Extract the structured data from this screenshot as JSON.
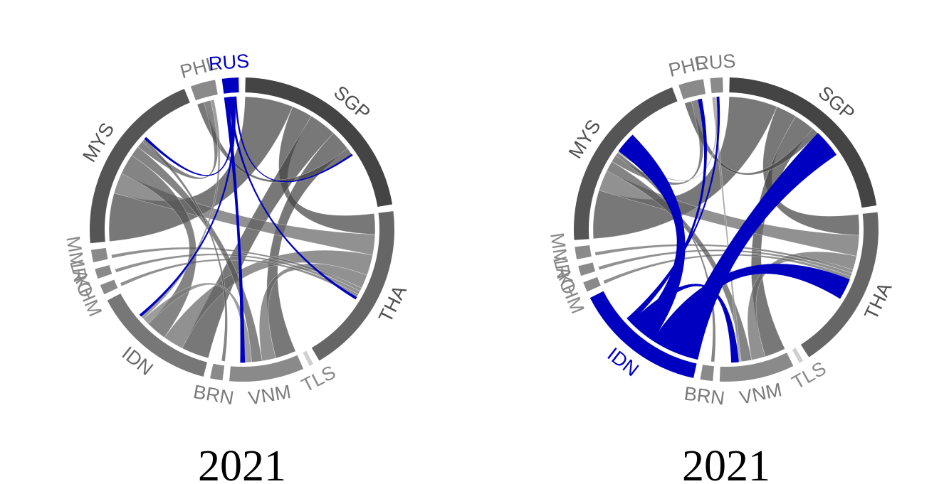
{
  "chart_data": [
    {
      "type": "chord",
      "title": "2021",
      "highlight": "RUS",
      "highlight_color": "#0000c0",
      "sectors": [
        {
          "label": "SGP",
          "value": 25,
          "color": "#444444",
          "label_color": "#505050"
        },
        {
          "label": "THA",
          "value": 21,
          "color": "#666666",
          "label_color": "#505050"
        },
        {
          "label": "TLS",
          "value": 0.5,
          "color": "#cfcfcf",
          "label_color": "#8a8a8a"
        },
        {
          "label": "VNM",
          "value": 9,
          "color": "#8a8a8a",
          "label_color": "#7a7a7a"
        },
        {
          "label": "BRN",
          "value": 1.5,
          "color": "#8a8a8a",
          "label_color": "#7a7a7a"
        },
        {
          "label": "IDN",
          "value": 15,
          "color": "#777777",
          "label_color": "#6a6a6a"
        },
        {
          "label": "KHM",
          "value": 1.2,
          "color": "#8a8a8a",
          "label_color": "#8a8a8a"
        },
        {
          "label": "LAO",
          "value": 1.2,
          "color": "#8a8a8a",
          "label_color": "#8a8a8a"
        },
        {
          "label": "MMR",
          "value": 1.5,
          "color": "#8a8a8a",
          "label_color": "#8a8a8a"
        },
        {
          "label": "MYS",
          "value": 23,
          "color": "#555555",
          "label_color": "#505050"
        },
        {
          "label": "PHL",
          "value": 3,
          "color": "#8a8a8a",
          "label_color": "#7a7a7a"
        },
        {
          "label": "RUS",
          "value": 2,
          "color": "#0000c0",
          "label_color": "#0000c0"
        }
      ],
      "flows": [
        {
          "from": "SGP",
          "to": "MYS",
          "value": 7
        },
        {
          "from": "SGP",
          "to": "THA",
          "value": 3
        },
        {
          "from": "SGP",
          "to": "IDN",
          "value": 4
        },
        {
          "from": "SGP",
          "to": "VNM",
          "value": 3
        },
        {
          "from": "SGP",
          "to": "PHL",
          "value": 1
        },
        {
          "from": "THA",
          "to": "MYS",
          "value": 3
        },
        {
          "from": "THA",
          "to": "IDN",
          "value": 3
        },
        {
          "from": "THA",
          "to": "VNM",
          "value": 2
        },
        {
          "from": "THA",
          "to": "MMR",
          "value": 0.5
        },
        {
          "from": "THA",
          "to": "LAO",
          "value": 0.5
        },
        {
          "from": "THA",
          "to": "KHM",
          "value": 0.5
        },
        {
          "from": "MYS",
          "to": "IDN",
          "value": 3
        },
        {
          "from": "MYS",
          "to": "VNM",
          "value": 1.5
        },
        {
          "from": "MYS",
          "to": "PHL",
          "value": 1
        },
        {
          "from": "MYS",
          "to": "BRN",
          "value": 0.5
        },
        {
          "from": "IDN",
          "to": "VNM",
          "value": 1
        },
        {
          "from": "IDN",
          "to": "PHL",
          "value": 0.5
        },
        {
          "from": "RUS",
          "to": "VNM",
          "value": 0.6
        },
        {
          "from": "RUS",
          "to": "THA",
          "value": 0.3
        },
        {
          "from": "RUS",
          "to": "MYS",
          "value": 0.3
        },
        {
          "from": "RUS",
          "to": "IDN",
          "value": 0.3
        },
        {
          "from": "RUS",
          "to": "SGP",
          "value": 0.2
        }
      ]
    },
    {
      "type": "chord",
      "title": "2021",
      "highlight": "IDN",
      "highlight_color": "#0000c0",
      "sectors": [
        {
          "label": "SGP",
          "value": 25,
          "color": "#444444",
          "label_color": "#505050"
        },
        {
          "label": "THA",
          "value": 20,
          "color": "#666666",
          "label_color": "#505050"
        },
        {
          "label": "TLS",
          "value": 0.5,
          "color": "#cfcfcf",
          "label_color": "#8a8a8a"
        },
        {
          "label": "VNM",
          "value": 9,
          "color": "#8a8a8a",
          "label_color": "#7a7a7a"
        },
        {
          "label": "BRN",
          "value": 1.5,
          "color": "#8a8a8a",
          "label_color": "#7a7a7a"
        },
        {
          "label": "IDN",
          "value": 16,
          "color": "#0000c0",
          "label_color": "#0000c0"
        },
        {
          "label": "KHM",
          "value": 1.2,
          "color": "#8a8a8a",
          "label_color": "#8a8a8a"
        },
        {
          "label": "LAO",
          "value": 1.2,
          "color": "#8a8a8a",
          "label_color": "#8a8a8a"
        },
        {
          "label": "MMR",
          "value": 1.5,
          "color": "#8a8a8a",
          "label_color": "#8a8a8a"
        },
        {
          "label": "MYS",
          "value": 23,
          "color": "#555555",
          "label_color": "#505050"
        },
        {
          "label": "PHL",
          "value": 3,
          "color": "#8a8a8a",
          "label_color": "#7a7a7a"
        },
        {
          "label": "RUS",
          "value": 1.5,
          "color": "#8a8a8a",
          "label_color": "#7a7a7a"
        }
      ],
      "flows": [
        {
          "from": "SGP",
          "to": "MYS",
          "value": 7
        },
        {
          "from": "SGP",
          "to": "THA",
          "value": 3
        },
        {
          "from": "SGP",
          "to": "VNM",
          "value": 3
        },
        {
          "from": "SGP",
          "to": "PHL",
          "value": 1
        },
        {
          "from": "THA",
          "to": "MYS",
          "value": 3
        },
        {
          "from": "THA",
          "to": "VNM",
          "value": 2
        },
        {
          "from": "THA",
          "to": "MMR",
          "value": 0.5
        },
        {
          "from": "THA",
          "to": "LAO",
          "value": 0.5
        },
        {
          "from": "THA",
          "to": "KHM",
          "value": 0.5
        },
        {
          "from": "MYS",
          "to": "VNM",
          "value": 1.5
        },
        {
          "from": "MYS",
          "to": "PHL",
          "value": 1
        },
        {
          "from": "MYS",
          "to": "BRN",
          "value": 0.5
        },
        {
          "from": "RUS",
          "to": "VNM",
          "value": 0.4
        },
        {
          "from": "RUS",
          "to": "MYS",
          "value": 0.3
        },
        {
          "from": "IDN",
          "to": "SGP",
          "value": 4
        },
        {
          "from": "IDN",
          "to": "THA",
          "value": 3
        },
        {
          "from": "IDN",
          "to": "MYS",
          "value": 3
        },
        {
          "from": "IDN",
          "to": "VNM",
          "value": 1
        },
        {
          "from": "IDN",
          "to": "PHL",
          "value": 0.5
        },
        {
          "from": "IDN",
          "to": "RUS",
          "value": 0.3
        }
      ]
    }
  ]
}
